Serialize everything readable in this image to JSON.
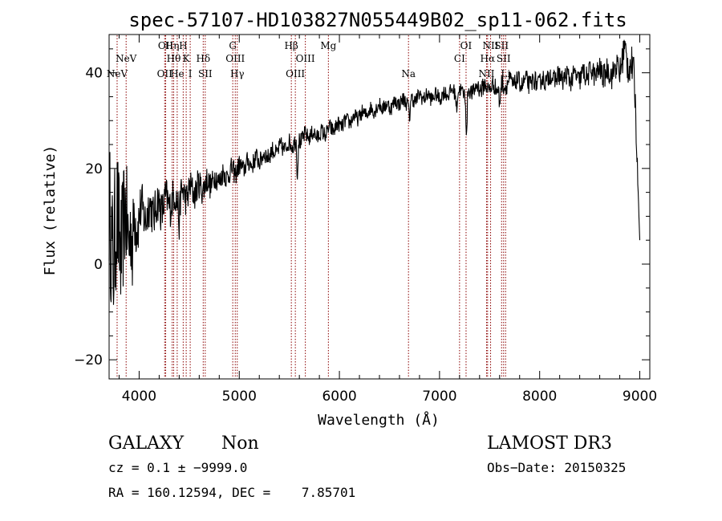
{
  "chart_data": {
    "type": "line",
    "title": "spec-57107-HD103827N055449B02_sp11-062.fits",
    "xlabel": "Wavelength (Å)",
    "ylabel": "Flux (relative)",
    "xlim": [
      3700,
      9100
    ],
    "ylim": [
      -24,
      48
    ],
    "x_ticks": [
      4000,
      5000,
      6000,
      7000,
      8000,
      9000
    ],
    "y_ticks": [
      -20,
      0,
      20,
      40
    ],
    "x_tick_labels": [
      "4000",
      "5000",
      "6000",
      "7000",
      "8000",
      "9000"
    ],
    "y_tick_labels": [
      "−20",
      "0",
      "20",
      "40"
    ],
    "series": [
      {
        "color": "#000000",
        "x": [
          3700,
          3750,
          3800,
          3850,
          3900,
          3950,
          4000,
          4100,
          4200,
          4300,
          4400,
          4500,
          4600,
          4700,
          4800,
          4900,
          5000,
          5100,
          5200,
          5300,
          5400,
          5500,
          5600,
          5700,
          5800,
          5900,
          6000,
          6100,
          6200,
          6300,
          6400,
          6500,
          6600,
          6700,
          6800,
          6900,
          7000,
          7100,
          7200,
          7300,
          7400,
          7500,
          7600,
          7700,
          7800,
          7900,
          8000,
          8100,
          8200,
          8300,
          8400,
          8500,
          8600,
          8700,
          8800,
          8850,
          8900,
          8950,
          9000
        ],
        "y": [
          8,
          5,
          6,
          7,
          8,
          9,
          10,
          11,
          12,
          13,
          14,
          15,
          16,
          17,
          18,
          19,
          20,
          21,
          22,
          23,
          24,
          25,
          26,
          27,
          27,
          28,
          29,
          30,
          31,
          32,
          33,
          33,
          34,
          34,
          35,
          35,
          35,
          36,
          36,
          36,
          37,
          37,
          37,
          38,
          38,
          38,
          38,
          39,
          39,
          39,
          39,
          40,
          40,
          40,
          41,
          44,
          42,
          38,
          5
        ],
        "noise": [
          9,
          10,
          9,
          8,
          7,
          5,
          3.5,
          3,
          2.8,
          2.6,
          2.4,
          2.2,
          2,
          1.8,
          1.6,
          1.5,
          1.4,
          1.3,
          1.3,
          1.2,
          1.2,
          1.2,
          1.2,
          1.1,
          1.1,
          1.1,
          1,
          1,
          1,
          1,
          1,
          1,
          1,
          1,
          1,
          1,
          1,
          1,
          1,
          1.1,
          1.2,
          1.2,
          1.2,
          1.2,
          1.2,
          1.3,
          1.3,
          1.3,
          1.4,
          1.4,
          1.5,
          1.5,
          1.6,
          1.7,
          2,
          2.5,
          2.5,
          2.5,
          0
        ]
      }
    ],
    "absorption_features": [
      {
        "x": 3934,
        "depth": 10
      },
      {
        "x": 4400,
        "depth": 5
      },
      {
        "x": 5580,
        "depth": 8
      },
      {
        "x": 6700,
        "depth": 4
      },
      {
        "x": 7170,
        "depth": 3
      },
      {
        "x": 7270,
        "depth": 10
      },
      {
        "x": 7600,
        "depth": 4
      }
    ],
    "line_color": "#8b0000",
    "lines": [
      {
        "x": 3780,
        "label": "NeV",
        "row": 3
      },
      {
        "x": 3870,
        "label": "NeV",
        "row": 2
      },
      {
        "x": 4255,
        "label": "OII",
        "row": 3
      },
      {
        "x": 4265,
        "label": "OII",
        "row": 1
      },
      {
        "x": 4330,
        "label": "Hη",
        "row": 1
      },
      {
        "x": 4345,
        "label": "Hθ",
        "row": 2
      },
      {
        "x": 4380,
        "label": "He",
        "row": 3
      },
      {
        "x": 4440,
        "label": "H",
        "row": 1
      },
      {
        "x": 4470,
        "label": "K",
        "row": 2
      },
      {
        "x": 4510,
        "label": "I",
        "row": 3
      },
      {
        "x": 4640,
        "label": "Hδ",
        "row": 2
      },
      {
        "x": 4660,
        "label": "SII",
        "row": 3
      },
      {
        "x": 4935,
        "label": "G",
        "row": 1
      },
      {
        "x": 4960,
        "label": "OIII",
        "row": 2
      },
      {
        "x": 4980,
        "label": "Hγ",
        "row": 3
      },
      {
        "x": 5520,
        "label": "Hβ",
        "row": 1
      },
      {
        "x": 5560,
        "label": "OIII",
        "row": 3
      },
      {
        "x": 5660,
        "label": "OIII",
        "row": 2
      },
      {
        "x": 5890,
        "label": "Mg",
        "row": 1
      },
      {
        "x": 6690,
        "label": "Na",
        "row": 3
      },
      {
        "x": 7200,
        "label": "CI",
        "row": 2
      },
      {
        "x": 7265,
        "label": "OI",
        "row": 1
      },
      {
        "x": 7470,
        "label": "NII",
        "row": 3
      },
      {
        "x": 7480,
        "label": "Hα",
        "row": 2
      },
      {
        "x": 7510,
        "label": "NII",
        "row": 1
      },
      {
        "x": 7620,
        "label": "SII",
        "row": 1
      },
      {
        "x": 7640,
        "label": "SII",
        "row": 2
      },
      {
        "x": 7660,
        "label": "Li",
        "row": 3
      }
    ]
  },
  "info": {
    "class_label": "GALAXY",
    "subclass_label": "Non",
    "survey_label": "LAMOST DR3",
    "cz_text": "cz = 0.1 ± −9999.0",
    "obs_date_text": "Obs−Date: 20150325",
    "radec_text": "RA = 160.12594, DEC =    7.85701"
  }
}
